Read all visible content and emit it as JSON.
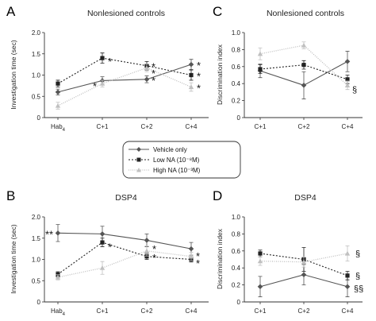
{
  "figure": {
    "legend": {
      "entries": [
        "Vehicle only",
        "Low NA (10⁻⁸M)",
        "High NA (10⁻³M)"
      ]
    },
    "colors": {
      "vehicle": "#555555",
      "low_na": "#222222",
      "high_na": "#c0c0c0"
    }
  },
  "chart_data": [
    {
      "panel": "A",
      "title": "Nonlesioned controls",
      "type": "line",
      "xlabel": "",
      "ylabel": "Investigation time (sec)",
      "categories": [
        "Hab",
        "C+1",
        "C+2",
        "C+4"
      ],
      "category_subscripts": [
        "4",
        "",
        "",
        ""
      ],
      "ylim": [
        0,
        2
      ],
      "yticks": [
        "0",
        "0.5",
        "1.0",
        "1.5",
        "2.0"
      ],
      "ytick_values": [
        0,
        0.5,
        1.0,
        1.5,
        2.0
      ],
      "series": [
        {
          "name": "Vehicle only",
          "values": [
            0.6,
            0.87,
            0.9,
            1.25
          ],
          "errors": [
            0.07,
            0.09,
            0.08,
            0.12
          ]
        },
        {
          "name": "Low NA (10⁻⁸M)",
          "values": [
            0.8,
            1.4,
            1.22,
            1.0
          ],
          "errors": [
            0.08,
            0.12,
            0.1,
            0.12
          ]
        },
        {
          "name": "High NA (10⁻³M)",
          "values": [
            0.28,
            0.8,
            1.17,
            0.72
          ],
          "errors": [
            0.08,
            0.08,
            0.09,
            0.1
          ]
        }
      ],
      "annotations": [
        {
          "label": "*",
          "category": "C+1",
          "value": 1.35
        },
        {
          "label": "*",
          "category": "C+1",
          "value": 0.77
        },
        {
          "label": "*",
          "category": "C+2",
          "value": 1.22
        },
        {
          "label": "*",
          "category": "C+2",
          "value": 1.07
        },
        {
          "label": "*",
          "category": "C+2",
          "value": 0.9
        },
        {
          "label": "*",
          "category": "C+4",
          "value": 1.25
        },
        {
          "label": "*",
          "category": "C+4",
          "value": 1.0
        },
        {
          "label": "*",
          "category": "C+4",
          "value": 0.72
        }
      ]
    },
    {
      "panel": "C",
      "title": "Nonlesioned controls",
      "type": "line",
      "xlabel": "",
      "ylabel": "Discrimination index",
      "categories": [
        "C+1",
        "C+2",
        "C+4"
      ],
      "category_subscripts": [
        "",
        "",
        ""
      ],
      "ylim": [
        0,
        1
      ],
      "yticks": [
        "0",
        "0.2",
        "0.4",
        "0.6",
        "0.8",
        "1.0"
      ],
      "ytick_values": [
        0,
        0.2,
        0.4,
        0.6,
        0.8,
        1.0
      ],
      "series": [
        {
          "name": "Vehicle only",
          "values": [
            0.55,
            0.38,
            0.66
          ],
          "errors": [
            0.08,
            0.16,
            0.12
          ]
        },
        {
          "name": "Low NA (10⁻⁸M)",
          "values": [
            0.57,
            0.62,
            0.45
          ],
          "errors": [
            0.05,
            0.05,
            0.05
          ]
        },
        {
          "name": "High NA (10⁻³M)",
          "values": [
            0.75,
            0.85,
            0.38
          ],
          "errors": [
            0.07,
            0.04,
            0.05
          ]
        }
      ],
      "annotations": [
        {
          "label": "§",
          "category": "C+4",
          "value": 0.33
        }
      ]
    },
    {
      "panel": "B",
      "title": "DSP4",
      "type": "line",
      "xlabel": "",
      "ylabel": "Investigation time (sec)",
      "categories": [
        "Hab",
        "C+1",
        "C+2",
        "C+4"
      ],
      "category_subscripts": [
        "4",
        "",
        "",
        ""
      ],
      "ylim": [
        0,
        2
      ],
      "yticks": [
        "0",
        "0.5",
        "1.0",
        "1.5",
        "2.0"
      ],
      "ytick_values": [
        0,
        0.5,
        1.0,
        1.5,
        2.0
      ],
      "series": [
        {
          "name": "Vehicle only",
          "values": [
            1.62,
            1.6,
            1.45,
            1.25
          ],
          "errors": [
            0.2,
            0.18,
            0.15,
            0.15
          ]
        },
        {
          "name": "Low NA (10⁻⁸M)",
          "values": [
            0.65,
            1.4,
            1.07,
            1.0
          ],
          "errors": [
            0.06,
            0.1,
            0.07,
            0.06
          ]
        },
        {
          "name": "High NA (10⁻³M)",
          "values": [
            0.58,
            0.8,
            1.2,
            1.07
          ],
          "errors": [
            0.06,
            0.15,
            0.12,
            0.1
          ]
        }
      ],
      "annotations": [
        {
          "label": "**",
          "category": "Hab",
          "value": 1.62
        },
        {
          "label": "*",
          "category": "C+1",
          "value": 1.32
        },
        {
          "label": "*",
          "category": "C+2",
          "value": 1.27
        },
        {
          "label": "*",
          "category": "C+2",
          "value": 1.07
        },
        {
          "label": "*",
          "category": "C+4",
          "value": 1.1
        },
        {
          "label": "*",
          "category": "C+4",
          "value": 0.93
        }
      ]
    },
    {
      "panel": "D",
      "title": "DSP4",
      "type": "line",
      "xlabel": "",
      "ylabel": "Discrimination index",
      "categories": [
        "C+1",
        "C+2",
        "C+4"
      ],
      "category_subscripts": [
        "",
        "",
        ""
      ],
      "ylim": [
        0,
        1
      ],
      "yticks": [
        "0",
        "0.2",
        "0.4",
        "0.6",
        "0.8",
        "1.0"
      ],
      "ytick_values": [
        0,
        0.2,
        0.4,
        0.6,
        0.8,
        1.0
      ],
      "series": [
        {
          "name": "Vehicle only",
          "values": [
            0.18,
            0.32,
            0.18
          ],
          "errors": [
            0.12,
            0.12,
            0.12
          ]
        },
        {
          "name": "Low NA (10⁻⁸M)",
          "values": [
            0.57,
            0.5,
            0.31
          ],
          "errors": [
            0.04,
            0.14,
            0.05
          ]
        },
        {
          "name": "High NA (10⁻³M)",
          "values": [
            0.48,
            0.47,
            0.57
          ],
          "errors": [
            0.05,
            0.06,
            0.09
          ]
        }
      ],
      "annotations": [
        {
          "label": "§",
          "category": "C+4",
          "value": 0.57
        },
        {
          "label": "§",
          "category": "C+4",
          "value": 0.31
        },
        {
          "label": "§§",
          "category": "C+4",
          "value": 0.16
        }
      ]
    }
  ]
}
